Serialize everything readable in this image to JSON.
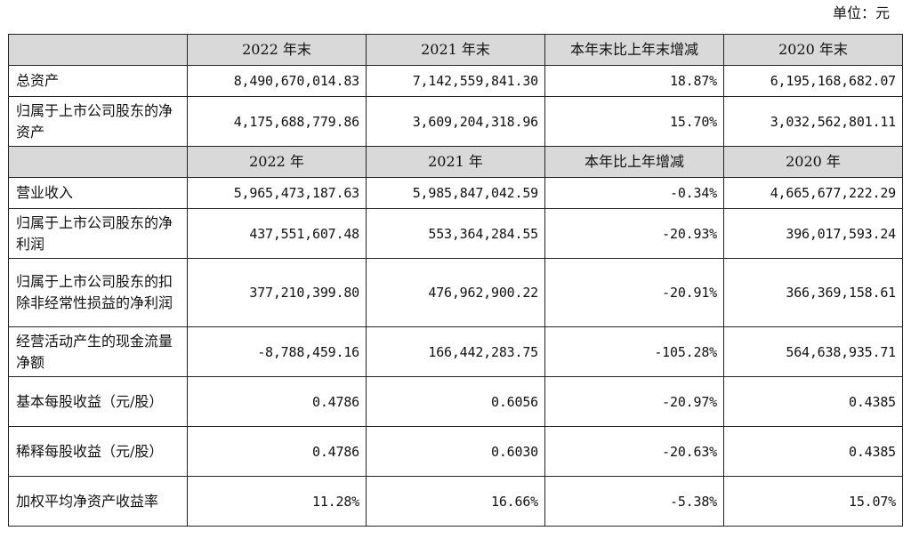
{
  "unit_label": "单位：元",
  "header1": [
    "",
    "2022 年末",
    "2021 年末",
    "本年末比上年末增减",
    "2020 年末"
  ],
  "header2": [
    "",
    "2022 年",
    "2021 年",
    "本年比上年增减",
    "2020 年"
  ],
  "rows_a": [
    {
      "label": "总资产",
      "values": [
        "8,490,670,014.83",
        "7,142,559,841.30",
        "18.87%",
        "6,195,168,682.07"
      ]
    },
    {
      "label": "归属于上市公司股东的净资产",
      "values": [
        "4,175,688,779.86",
        "3,609,204,318.96",
        "15.70%",
        "3,032,562,801.11"
      ]
    }
  ],
  "rows_b": [
    {
      "label": "营业收入",
      "values": [
        "5,965,473,187.63",
        "5,985,847,042.59",
        "-0.34%",
        "4,665,677,222.29"
      ]
    },
    {
      "label": "归属于上市公司股东的净利润",
      "values": [
        "437,551,607.48",
        "553,364,284.55",
        "-20.93%",
        "396,017,593.24"
      ]
    },
    {
      "label": "归属于上市公司股东的扣除非经常性损益的净利润",
      "values": [
        "377,210,399.80",
        "476,962,900.22",
        "-20.91%",
        "366,369,158.61"
      ]
    },
    {
      "label": "经营活动产生的现金流量净额",
      "values": [
        "-8,788,459.16",
        "166,442,283.75",
        "-105.28%",
        "564,638,935.71"
      ]
    },
    {
      "label": "基本每股收益（元/股）",
      "values": [
        "0.4786",
        "0.6056",
        "-20.97%",
        "0.4385"
      ]
    },
    {
      "label": "稀释每股收益（元/股）",
      "values": [
        "0.4786",
        "0.6030",
        "-20.63%",
        "0.4385"
      ]
    },
    {
      "label": "加权平均净资产收益率",
      "values": [
        "11.28%",
        "16.66%",
        "-5.38%",
        "15.07%"
      ]
    }
  ]
}
